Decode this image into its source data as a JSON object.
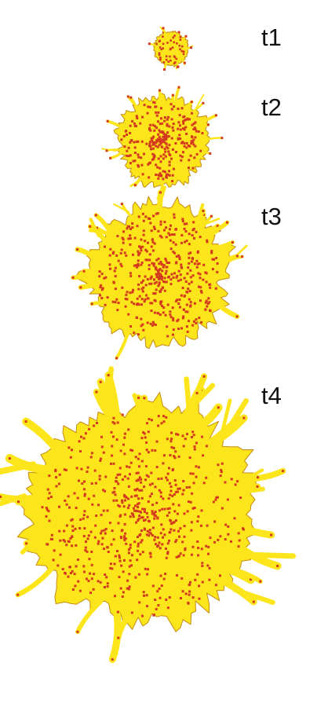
{
  "stages": [
    {
      "label": "t1"
    },
    {
      "label": "t2"
    },
    {
      "label": "t3"
    },
    {
      "label": "t4"
    }
  ],
  "colors": {
    "cluster_fill": "#FCE51B",
    "cluster_edge": "#C58A12",
    "particle": "#D33A1E",
    "background": "#FFFFFF"
  }
}
